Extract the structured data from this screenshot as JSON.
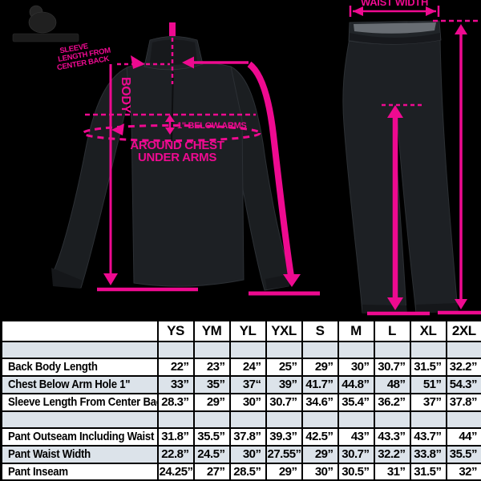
{
  "annotation_color": "#ee0a90",
  "garment_color": "#1d2024",
  "table_stripe_color": "#dce3ea",
  "brand": {
    "logo": "brand-emblem"
  },
  "jacket": {
    "sleeve_note_lines": [
      "SLEEVE",
      "LENGTH FROM",
      "CENTER BACK"
    ],
    "body_label": "BODY",
    "below_arms_label": "1\" BELOW ARMS",
    "chest_label_line1": "AROUND CHEST",
    "chest_label_line2": "UNDER ARMS"
  },
  "pants": {
    "waist_label": "WAIST WIDTH"
  },
  "table": {
    "columns": [
      "",
      "YS",
      "YM",
      "YL",
      "YXL",
      "S",
      "M",
      "L",
      "XL",
      "2XL"
    ],
    "rows": [
      {
        "type": "spacer",
        "label": "",
        "values": [
          "",
          "",
          "",
          "",
          "",
          "",
          "",
          "",
          ""
        ]
      },
      {
        "type": "data",
        "label": "Back Body Length",
        "values": [
          "22”",
          "23”",
          "24”",
          "25”",
          "29”",
          "30”",
          "30.7”",
          "31.5”",
          "32.2”"
        ]
      },
      {
        "type": "data",
        "label": "Chest Below Arm Hole 1\"",
        "values": [
          "33”",
          "35”",
          "37“",
          "39”",
          "41.7”",
          "44.8”",
          "48”",
          "51”",
          "54.3”"
        ]
      },
      {
        "type": "data",
        "label": "Sleeve Length From Center Back",
        "values": [
          "28.3”",
          "29”",
          "30”",
          "30.7”",
          "34.6”",
          "35.4”",
          "36.2”",
          "37”",
          "37.8”"
        ]
      },
      {
        "type": "spacer",
        "label": "",
        "values": [
          "",
          "",
          "",
          "",
          "",
          "",
          "",
          "",
          ""
        ]
      },
      {
        "type": "data",
        "label": "Pant Outseam Including Waist",
        "values": [
          "31.8”",
          "35.5”",
          "37.8”",
          "39.3”",
          "42.5”",
          "43”",
          "43.3”",
          "43.7”",
          "44”"
        ]
      },
      {
        "type": "data",
        "label": "Pant Waist Width",
        "values": [
          "22.8”",
          "24.5”",
          "30”",
          "27.55”",
          "29”",
          "30.7”",
          "32.2”",
          "33.8”",
          "35.5”"
        ]
      },
      {
        "type": "data",
        "label": "Pant Inseam",
        "values": [
          "24.25”",
          "27”",
          "28.5”",
          "29”",
          "30”",
          "30.5”",
          "31”",
          "31.5”",
          "32”"
        ]
      }
    ]
  }
}
